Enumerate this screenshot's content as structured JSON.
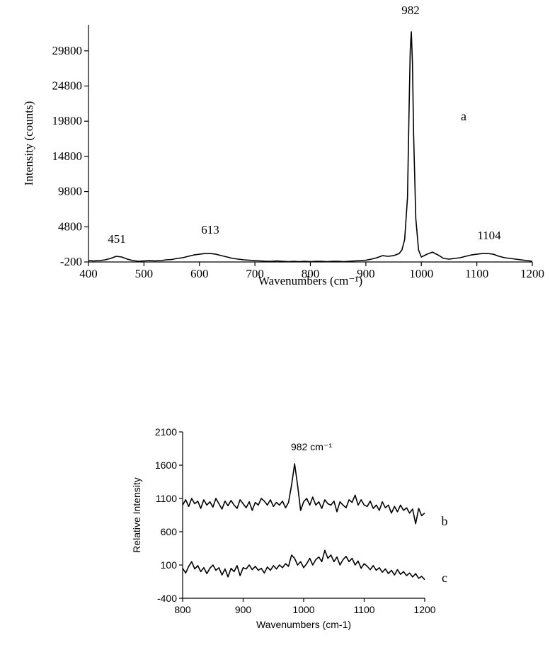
{
  "chart_data": [
    {
      "type": "line",
      "x_label": "Wavenumbers (cm⁻¹)",
      "y_label": "Intensity (counts)",
      "annotations": [
        "982",
        "451",
        "613",
        "1104"
      ],
      "xlim": [
        400,
        1200
      ],
      "xticks": [
        400,
        500,
        600,
        700,
        800,
        900,
        1000,
        1100,
        1200
      ],
      "ylim": [
        -200,
        33500
      ],
      "yticks": [
        -200,
        4800,
        9800,
        14800,
        19800,
        24800,
        29800
      ],
      "x": [
        400,
        410,
        420,
        430,
        440,
        450,
        460,
        470,
        480,
        490,
        500,
        510,
        520,
        530,
        540,
        550,
        560,
        570,
        580,
        590,
        600,
        610,
        620,
        630,
        640,
        650,
        660,
        670,
        680,
        690,
        700,
        710,
        720,
        730,
        740,
        750,
        760,
        770,
        780,
        790,
        800,
        810,
        820,
        830,
        840,
        850,
        860,
        870,
        880,
        890,
        900,
        910,
        920,
        930,
        940,
        950,
        960,
        965,
        970,
        975,
        978,
        980,
        982,
        984,
        986,
        990,
        995,
        1000,
        1010,
        1020,
        1030,
        1040,
        1050,
        1060,
        1070,
        1080,
        1090,
        1100,
        1110,
        1120,
        1130,
        1140,
        1150,
        1160,
        1170,
        1180,
        1190,
        1200
      ],
      "series": [
        {
          "name": "a",
          "color": "#000000",
          "values": [
            0,
            -50,
            0,
            100,
            300,
            600,
            500,
            200,
            0,
            -100,
            -50,
            0,
            -50,
            0,
            100,
            150,
            300,
            400,
            600,
            800,
            900,
            1000,
            1000,
            900,
            700,
            500,
            300,
            200,
            100,
            50,
            0,
            -50,
            -100,
            -100,
            -50,
            -100,
            -150,
            -100,
            -150,
            -100,
            -150,
            -100,
            -100,
            -150,
            -100,
            -100,
            -150,
            -100,
            -50,
            0,
            50,
            200,
            400,
            700,
            600,
            700,
            1000,
            1500,
            3000,
            9000,
            22000,
            30000,
            32500,
            28000,
            18000,
            6000,
            1500,
            500,
            900,
            1200,
            800,
            300,
            200,
            300,
            400,
            600,
            800,
            900,
            1000,
            1000,
            900,
            600,
            400,
            300,
            200,
            100,
            0,
            -100
          ]
        }
      ]
    },
    {
      "type": "line",
      "x_label": "Wavenumbers (cm-1)",
      "y_label": "Relative Intensity",
      "annotations": [
        "982 cm⁻¹"
      ],
      "xlim": [
        800,
        1200
      ],
      "xticks": [
        800,
        900,
        1000,
        1100,
        1200
      ],
      "ylim": [
        -400,
        2100
      ],
      "yticks": [
        -400,
        100,
        600,
        1100,
        1600,
        2100
      ],
      "x": [
        800,
        805,
        810,
        815,
        820,
        825,
        830,
        835,
        840,
        845,
        850,
        855,
        860,
        865,
        870,
        875,
        880,
        885,
        890,
        895,
        900,
        905,
        910,
        915,
        920,
        925,
        930,
        935,
        940,
        945,
        950,
        955,
        960,
        965,
        970,
        975,
        980,
        985,
        990,
        995,
        1000,
        1005,
        1010,
        1015,
        1020,
        1025,
        1030,
        1035,
        1040,
        1045,
        1050,
        1055,
        1060,
        1065,
        1070,
        1075,
        1080,
        1085,
        1090,
        1095,
        1100,
        1105,
        1110,
        1115,
        1120,
        1125,
        1130,
        1135,
        1140,
        1145,
        1150,
        1155,
        1160,
        1165,
        1170,
        1175,
        1180,
        1185,
        1190,
        1195,
        1200
      ],
      "series": [
        {
          "name": "b",
          "color": "#000000",
          "values": [
            1000,
            1080,
            980,
            1100,
            1020,
            1060,
            950,
            1080,
            1000,
            1050,
            970,
            1100,
            1020,
            940,
            1060,
            990,
            1070,
            1000,
            950,
            1080,
            1020,
            960,
            1050,
            920,
            1040,
            1000,
            1100,
            1060,
            1000,
            1080,
            980,
            1040,
            1000,
            1060,
            960,
            1040,
            1300,
            1620,
            1300,
            920,
            1050,
            1100,
            1000,
            1120,
            1000,
            1050,
            950,
            1080,
            1020,
            1000,
            1060,
            900,
            1050,
            1000,
            960,
            1080,
            1040,
            1150,
            1000,
            1080,
            1000,
            980,
            1060,
            950,
            1000,
            920,
            1050,
            960,
            1000,
            880,
            980,
            900,
            1000,
            920,
            960,
            880,
            940,
            720,
            950,
            840,
            880
          ]
        },
        {
          "name": "c",
          "color": "#000000",
          "values": [
            50,
            -20,
            80,
            150,
            40,
            90,
            0,
            60,
            -30,
            50,
            100,
            20,
            60,
            -50,
            40,
            -80,
            50,
            0,
            90,
            -60,
            60,
            40,
            100,
            30,
            80,
            20,
            50,
            -20,
            70,
            20,
            90,
            40,
            100,
            60,
            120,
            80,
            250,
            200,
            100,
            150,
            60,
            120,
            200,
            100,
            180,
            220,
            150,
            320,
            200,
            250,
            150,
            220,
            100,
            180,
            230,
            150,
            200,
            100,
            160,
            50,
            120,
            80,
            30,
            90,
            20,
            60,
            -10,
            40,
            -30,
            20,
            -50,
            30,
            -40,
            0,
            -60,
            -20,
            -80,
            -30,
            -100,
            -70,
            -120
          ]
        }
      ]
    }
  ]
}
